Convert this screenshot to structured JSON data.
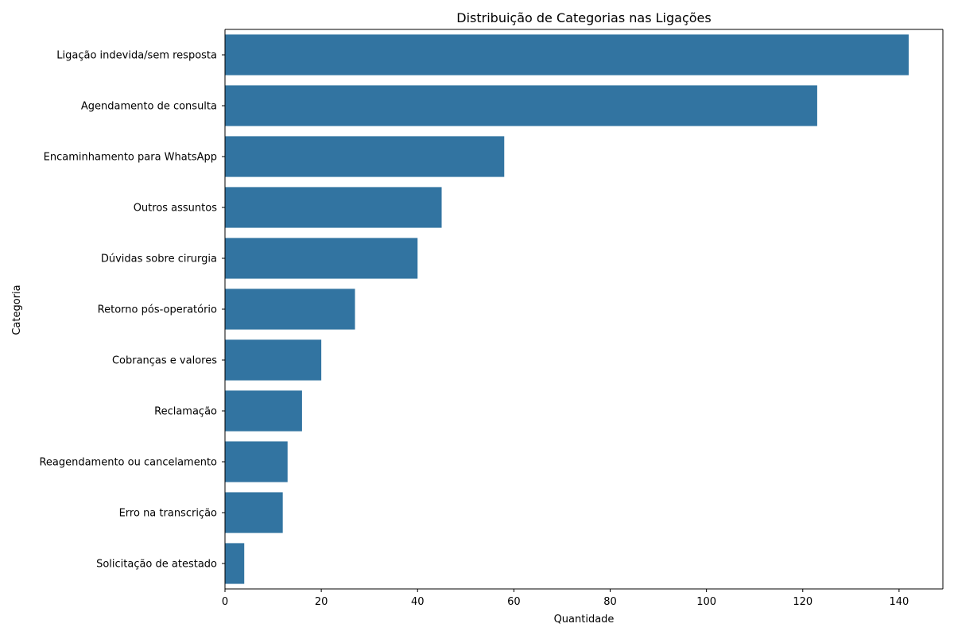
{
  "chart_data": {
    "type": "bar",
    "orientation": "horizontal",
    "title": "Distribuição de Categorias nas Ligações",
    "xlabel": "Quantidade",
    "ylabel": "Categoria",
    "categories": [
      "Ligação indevida/sem resposta",
      "Agendamento de consulta",
      "Encaminhamento para WhatsApp",
      "Outros assuntos",
      "Dúvidas sobre cirurgia",
      "Retorno pós-operatório",
      "Cobranças e valores",
      "Reclamação",
      "Reagendamento ou cancelamento",
      "Erro na transcrição",
      "Solicitação de atestado"
    ],
    "values": [
      142,
      123,
      58,
      45,
      40,
      27,
      20,
      16,
      13,
      12,
      4
    ],
    "xlim": [
      0,
      149.1
    ],
    "xticks": [
      "0",
      "20",
      "40",
      "60",
      "80",
      "100",
      "120",
      "140"
    ],
    "grid": false,
    "legend": "none",
    "bar_color": "#3274a1"
  }
}
